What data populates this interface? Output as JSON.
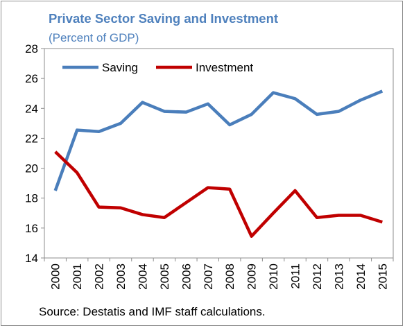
{
  "title": "Private Sector Saving and Investment",
  "subtitle": "(Percent of GDP)",
  "source": "Source: Destatis and IMF staff calculations.",
  "chart_data": {
    "type": "line",
    "title": "Private Sector Saving and Investment",
    "subtitle": "(Percent of GDP)",
    "x": [
      "2000",
      "2001",
      "2002",
      "2003",
      "2004",
      "2005",
      "2006",
      "2007",
      "2008",
      "2009",
      "2010",
      "2011",
      "2012",
      "2013",
      "2014",
      "2015"
    ],
    "series": [
      {
        "name": "Saving",
        "color": "#4a7ebb",
        "values": [
          18.5,
          22.55,
          22.45,
          23.0,
          24.4,
          23.8,
          23.75,
          24.3,
          22.9,
          23.6,
          25.05,
          24.65,
          23.6,
          23.8,
          24.55,
          25.15
        ]
      },
      {
        "name": "Investment",
        "color": "#c00000",
        "values": [
          21.1,
          19.7,
          17.4,
          17.35,
          16.9,
          16.7,
          17.7,
          18.7,
          18.6,
          15.45,
          17.0,
          18.5,
          16.7,
          16.85,
          16.85,
          16.4
        ]
      }
    ],
    "ylim": [
      14,
      28
    ],
    "yticks": [
      14,
      16,
      18,
      20,
      22,
      24,
      26,
      28
    ],
    "xlabel": "",
    "ylabel": "",
    "grid": false,
    "legend": "top-left"
  }
}
